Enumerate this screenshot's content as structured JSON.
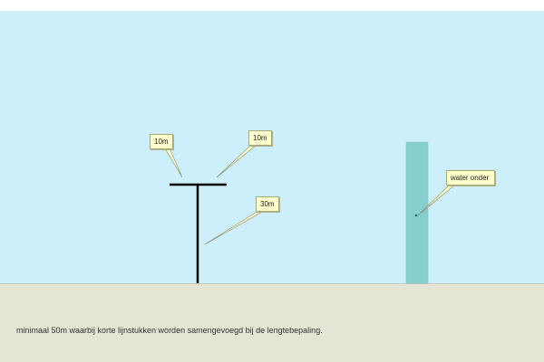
{
  "labels": {
    "segment_left": "10m",
    "segment_right": "10m",
    "pole": "30m",
    "water": "water onder"
  },
  "footnote": "minimaal 50m waarbij korte lijnstukken worden samengevoegd bij de lengtebepaling.",
  "colors": {
    "sky": "#cdeefb",
    "ground": "#e5e5d6",
    "water_column": "#86cfcf",
    "lines": "#000000",
    "callout_fill": "#ffffcc"
  }
}
